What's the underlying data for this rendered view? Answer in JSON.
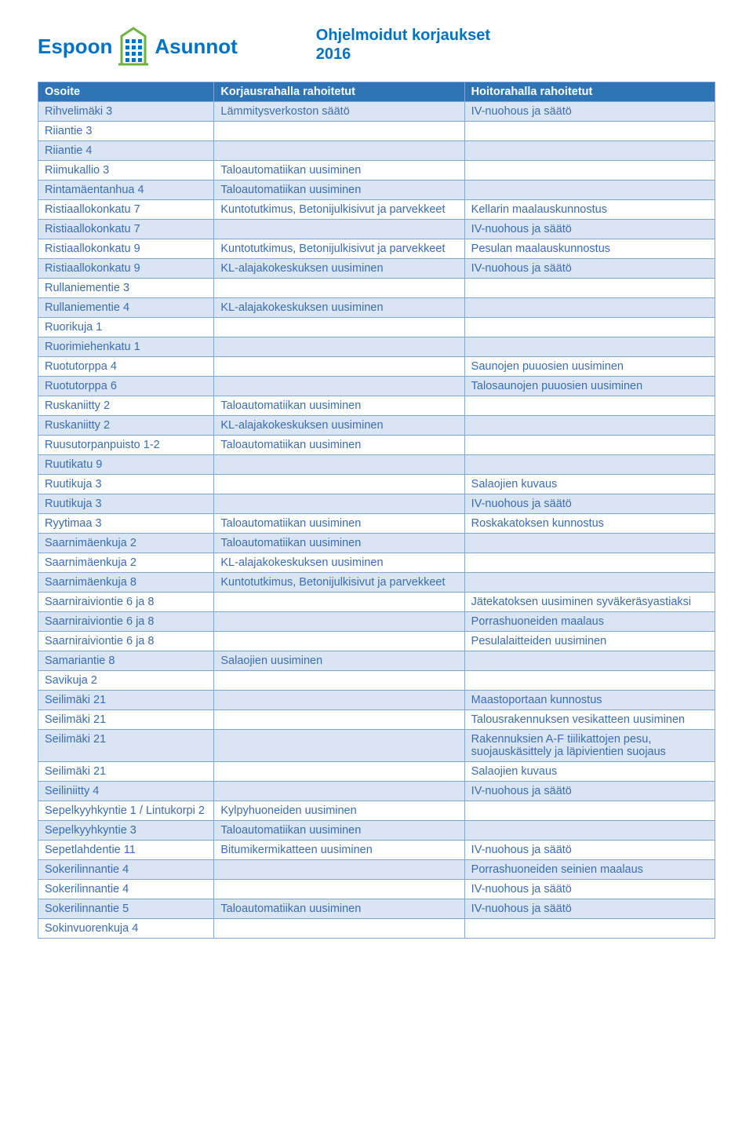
{
  "brand": {
    "left": "Espoon",
    "right": "Asunnot"
  },
  "doc": {
    "title": "Ohjelmoidut korjaukset",
    "year": "2016"
  },
  "colors": {
    "header_bg": "#2f75b5",
    "row_odd": "#d9e5f3",
    "row_even": "#ffffff",
    "border": "#7fa8d9",
    "text": "#3b6db3",
    "brand": "#0072c6",
    "accent_green": "#6db33f"
  },
  "table": {
    "columns": [
      "Osoite",
      "Korjausrahalla rahoitetut",
      "Hoitorahalla rahoitetut"
    ],
    "rows": [
      [
        "Rihvelimäki 3",
        "Lämmitysverkoston säätö",
        "IV-nuohous ja säätö"
      ],
      [
        "Riiantie 3",
        "",
        ""
      ],
      [
        "Riiantie 4",
        "",
        ""
      ],
      [
        "Riimukallio 3",
        "Taloautomatiikan uusiminen",
        ""
      ],
      [
        "Rintamäentanhua 4",
        "Taloautomatiikan uusiminen",
        ""
      ],
      [
        "Ristiaallokonkatu 7",
        "Kuntotutkimus, Betonijulkisivut ja parvekkeet",
        "Kellarin maalauskunnostus"
      ],
      [
        "Ristiaallokonkatu 7",
        "",
        "IV-nuohous ja säätö"
      ],
      [
        "Ristiaallokonkatu 9",
        "Kuntotutkimus, Betonijulkisivut ja parvekkeet",
        "Pesulan maalauskunnostus"
      ],
      [
        "Ristiaallokonkatu 9",
        "KL-alajakokeskuksen uusiminen",
        "IV-nuohous ja säätö"
      ],
      [
        "Rullaniementie 3",
        "",
        ""
      ],
      [
        "Rullaniementie 4",
        "KL-alajakokeskuksen uusiminen",
        ""
      ],
      [
        "Ruorikuja 1",
        "",
        ""
      ],
      [
        "Ruorimiehenkatu 1",
        "",
        ""
      ],
      [
        "Ruotutorppa 4",
        "",
        "Saunojen puuosien uusiminen"
      ],
      [
        "Ruotutorppa 6",
        "",
        "Talosaunojen puuosien uusiminen"
      ],
      [
        "Ruskaniitty 2",
        "Taloautomatiikan uusiminen",
        ""
      ],
      [
        "Ruskaniitty 2",
        "KL-alajakokeskuksen uusiminen",
        ""
      ],
      [
        "Ruusutorpanpuisto 1-2",
        "Taloautomatiikan uusiminen",
        ""
      ],
      [
        "Ruutikatu 9",
        "",
        ""
      ],
      [
        "Ruutikuja 3",
        "",
        "Salaojien kuvaus"
      ],
      [
        "Ruutikuja 3",
        "",
        "IV-nuohous ja säätö"
      ],
      [
        "Ryytimaa 3",
        "Taloautomatiikan uusiminen",
        "Roskakatoksen kunnostus"
      ],
      [
        "Saarnimäenkuja 2",
        "Taloautomatiikan uusiminen",
        ""
      ],
      [
        "Saarnimäenkuja 2",
        "KL-alajakokeskuksen uusiminen",
        ""
      ],
      [
        "Saarnimäenkuja 8",
        "Kuntotutkimus, Betonijulkisivut ja parvekkeet",
        ""
      ],
      [
        "Saarniraiviontie 6 ja 8",
        "",
        "Jätekatoksen uusiminen syväkeräsyastiaksi"
      ],
      [
        "Saarniraiviontie 6 ja 8",
        "",
        "Porrashuoneiden maalaus"
      ],
      [
        "Saarniraiviontie 6 ja 8",
        "",
        "Pesulalaitteiden uusiminen"
      ],
      [
        "Samariantie 8",
        "Salaojien uusiminen",
        ""
      ],
      [
        "Savikuja 2",
        "",
        ""
      ],
      [
        "Seilimäki 21",
        "",
        "Maastoportaan kunnostus"
      ],
      [
        "Seilimäki 21",
        "",
        "Talousrakennuksen vesikatteen uusiminen"
      ],
      [
        "Seilimäki 21",
        "",
        "Rakennuksien A-F tiilikattojen pesu, suojauskäsittely ja läpivientien suojaus"
      ],
      [
        "Seilimäki 21",
        "",
        "Salaojien kuvaus"
      ],
      [
        "Seiliniitty 4",
        "",
        "IV-nuohous ja säätö"
      ],
      [
        "Sepelkyyhkyntie 1 / Lintukorpi 2",
        "Kylpyhuoneiden uusiminen",
        ""
      ],
      [
        "Sepelkyyhkyntie 3",
        "Taloautomatiikan uusiminen",
        ""
      ],
      [
        "Sepetlahdentie 11",
        "Bitumikermikatteen uusiminen",
        "IV-nuohous ja säätö"
      ],
      [
        "Sokerilinnantie 4",
        "",
        "Porrashuoneiden seinien maalaus"
      ],
      [
        "Sokerilinnantie 4",
        "",
        "IV-nuohous ja säätö"
      ],
      [
        "Sokerilinnantie 5",
        "Taloautomatiikan uusiminen",
        "IV-nuohous ja säätö"
      ],
      [
        "Sokinvuorenkuja 4",
        "",
        ""
      ]
    ]
  }
}
